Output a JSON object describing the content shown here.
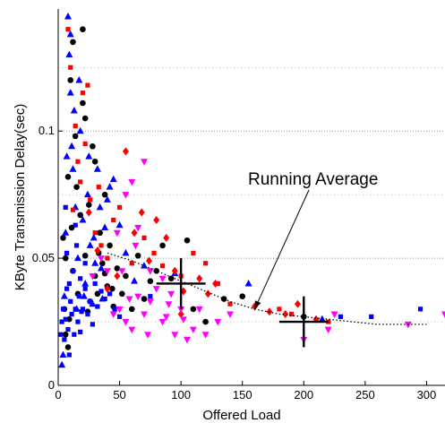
{
  "chart_data": {
    "type": "scatter",
    "title": "",
    "xlabel": "Offered Load",
    "ylabel": "KByte Transmission Delay(sec)",
    "xlim": [
      0,
      315
    ],
    "ylim": [
      0,
      0.148
    ],
    "xticks": [
      0,
      50,
      100,
      150,
      200,
      250,
      300
    ],
    "yticks": [
      0,
      0.05,
      0.1
    ],
    "ytick_labels": [
      "0",
      "0.05",
      "0.1"
    ],
    "grid": "horizontal dotted",
    "colors": {
      "black": "#000000",
      "blue": "#0000ff",
      "red": "#ff0000",
      "magenta": "#ff00ff"
    },
    "series": [
      {
        "marker": "circle",
        "color": "black",
        "points": [
          [
            5,
            0.03
          ],
          [
            6,
            0.05
          ],
          [
            8,
            0.082
          ],
          [
            10,
            0.12
          ],
          [
            12,
            0.045
          ],
          [
            14,
            0.098
          ],
          [
            16,
            0.036
          ],
          [
            18,
            0.067
          ],
          [
            20,
            0.111
          ],
          [
            22,
            0.051
          ],
          [
            24,
            0.029
          ],
          [
            25,
            0.071
          ],
          [
            28,
            0.094
          ],
          [
            30,
            0.043
          ],
          [
            32,
            0.036
          ],
          [
            34,
            0.06
          ],
          [
            36,
            0.048
          ],
          [
            38,
            0.075
          ],
          [
            40,
            0.039
          ],
          [
            42,
            0.055
          ],
          [
            45,
            0.031
          ],
          [
            48,
            0.046
          ],
          [
            52,
            0.036
          ],
          [
            55,
            0.043
          ],
          [
            60,
            0.03
          ],
          [
            65,
            0.051
          ],
          [
            70,
            0.034
          ],
          [
            75,
            0.041
          ],
          [
            80,
            0.045
          ],
          [
            85,
            0.055
          ],
          [
            92,
            0.042
          ],
          [
            105,
            0.057
          ],
          [
            110,
            0.03
          ],
          [
            120,
            0.025
          ],
          [
            135,
            0.034
          ],
          [
            150,
            0.035
          ],
          [
            200,
            0.027
          ],
          [
            8,
            0.015
          ],
          [
            12,
            0.135
          ],
          [
            20,
            0.14
          ],
          [
            6,
            0.02
          ],
          [
            15,
            0.078
          ],
          [
            30,
            0.088
          ],
          [
            9,
            0.026
          ],
          [
            22,
            0.105
          ],
          [
            4,
            0.058
          ],
          [
            11,
            0.062
          ],
          [
            26,
            0.033
          ],
          [
            33,
            0.052
          ],
          [
            38,
            0.044
          ],
          [
            44,
            0.038
          ]
        ]
      },
      {
        "marker": "triangle",
        "color": "blue",
        "points": [
          [
            3,
            0.008
          ],
          [
            4,
            0.012
          ],
          [
            5,
            0.035
          ],
          [
            6,
            0.06
          ],
          [
            7,
            0.09
          ],
          [
            8,
            0.145
          ],
          [
            9,
            0.13
          ],
          [
            10,
            0.115
          ],
          [
            12,
            0.085
          ],
          [
            14,
            0.07
          ],
          [
            15,
            0.03
          ],
          [
            16,
            0.05
          ],
          [
            18,
            0.1
          ],
          [
            20,
            0.065
          ],
          [
            22,
            0.04
          ],
          [
            24,
            0.075
          ],
          [
            26,
            0.055
          ],
          [
            28,
            0.032
          ],
          [
            30,
            0.048
          ],
          [
            34,
            0.07
          ],
          [
            36,
            0.034
          ],
          [
            38,
            0.062
          ],
          [
            40,
            0.073
          ],
          [
            45,
            0.081
          ],
          [
            50,
            0.063
          ],
          [
            55,
            0.052
          ],
          [
            62,
            0.041
          ],
          [
            70,
            0.047
          ],
          [
            95,
            0.044
          ],
          [
            155,
            0.04
          ],
          [
            215,
            0.026
          ],
          [
            10,
            0.138
          ],
          [
            25,
            0.09
          ],
          [
            32,
            0.085
          ],
          [
            42,
            0.078
          ],
          [
            11,
            0.094
          ],
          [
            17,
            0.12
          ],
          [
            13,
            0.108
          ],
          [
            21,
            0.035
          ],
          [
            29,
            0.058
          ],
          [
            35,
            0.046
          ]
        ]
      },
      {
        "marker": "square",
        "color": "blue",
        "points": [
          [
            2,
            0.02
          ],
          [
            3,
            0.025
          ],
          [
            4,
            0.03
          ],
          [
            5,
            0.018
          ],
          [
            6,
            0.026
          ],
          [
            7,
            0.038
          ],
          [
            8,
            0.022
          ],
          [
            9,
            0.04
          ],
          [
            10,
            0.033
          ],
          [
            11,
            0.028
          ],
          [
            12,
            0.045
          ],
          [
            13,
            0.02
          ],
          [
            14,
            0.03
          ],
          [
            15,
            0.055
          ],
          [
            16,
            0.025
          ],
          [
            17,
            0.035
          ],
          [
            18,
            0.042
          ],
          [
            19,
            0.029
          ],
          [
            20,
            0.03
          ],
          [
            22,
            0.038
          ],
          [
            24,
            0.028
          ],
          [
            26,
            0.033
          ],
          [
            28,
            0.024
          ],
          [
            30,
            0.04
          ],
          [
            32,
            0.031
          ],
          [
            35,
            0.037
          ],
          [
            38,
            0.034
          ],
          [
            42,
            0.036
          ],
          [
            46,
            0.03
          ],
          [
            50,
            0.027
          ],
          [
            75,
            0.035
          ],
          [
            230,
            0.027
          ],
          [
            255,
            0.027
          ],
          [
            295,
            0.03
          ],
          [
            6,
            0.07
          ],
          [
            9,
            0.012
          ],
          [
            14,
            0.063
          ],
          [
            18,
            0.021
          ],
          [
            22,
            0.048
          ],
          [
            7,
            0.052
          ]
        ]
      },
      {
        "marker": "square",
        "color": "red",
        "points": [
          [
            8,
            0.14
          ],
          [
            10,
            0.125
          ],
          [
            14,
            0.102
          ],
          [
            18,
            0.08
          ],
          [
            20,
            0.115
          ],
          [
            22,
            0.095
          ],
          [
            26,
            0.073
          ],
          [
            30,
            0.06
          ],
          [
            35,
            0.055
          ],
          [
            40,
            0.05
          ],
          [
            45,
            0.065
          ],
          [
            50,
            0.07
          ],
          [
            60,
            0.048
          ],
          [
            70,
            0.058
          ],
          [
            78,
            0.052
          ],
          [
            85,
            0.047
          ],
          [
            100,
            0.043
          ],
          [
            110,
            0.052
          ],
          [
            120,
            0.048
          ],
          [
            130,
            0.04
          ],
          [
            140,
            0.032
          ],
          [
            180,
            0.03
          ],
          [
            190,
            0.028
          ],
          [
            220,
            0.025
          ],
          [
            16,
            0.088
          ],
          [
            24,
            0.118
          ],
          [
            12,
            0.069
          ],
          [
            33,
            0.078
          ]
        ]
      },
      {
        "marker": "diamond",
        "color": "red",
        "points": [
          [
            25,
            0.068
          ],
          [
            32,
            0.053
          ],
          [
            40,
            0.038
          ],
          [
            55,
            0.092
          ],
          [
            62,
            0.06
          ],
          [
            68,
            0.068
          ],
          [
            74,
            0.049
          ],
          [
            80,
            0.065
          ],
          [
            88,
            0.058
          ],
          [
            95,
            0.045
          ],
          [
            100,
            0.028
          ],
          [
            102,
            0.037
          ],
          [
            115,
            0.042
          ],
          [
            122,
            0.036
          ],
          [
            128,
            0.04
          ],
          [
            160,
            0.031
          ],
          [
            172,
            0.029
          ],
          [
            185,
            0.028
          ],
          [
            195,
            0.032
          ],
          [
            210,
            0.026
          ],
          [
            48,
            0.043
          ]
        ]
      },
      {
        "marker": "triangle-down",
        "color": "magenta",
        "points": [
          [
            28,
            0.043
          ],
          [
            35,
            0.05
          ],
          [
            40,
            0.045
          ],
          [
            45,
            0.028
          ],
          [
            50,
            0.03
          ],
          [
            55,
            0.025
          ],
          [
            60,
            0.022
          ],
          [
            65,
            0.035
          ],
          [
            70,
            0.028
          ],
          [
            75,
            0.045
          ],
          [
            80,
            0.038
          ],
          [
            85,
            0.025
          ],
          [
            90,
            0.032
          ],
          [
            95,
            0.02
          ],
          [
            100,
            0.03
          ],
          [
            105,
            0.018
          ],
          [
            110,
            0.022
          ],
          [
            115,
            0.03
          ],
          [
            120,
            0.02
          ],
          [
            130,
            0.025
          ],
          [
            140,
            0.028
          ],
          [
            55,
            0.075
          ],
          [
            60,
            0.08
          ],
          [
            65,
            0.062
          ],
          [
            70,
            0.088
          ],
          [
            48,
            0.06
          ],
          [
            52,
            0.045
          ],
          [
            75,
            0.033
          ],
          [
            85,
            0.042
          ],
          [
            92,
            0.036
          ],
          [
            200,
            0.018
          ],
          [
            220,
            0.022
          ],
          [
            225,
            0.028
          ],
          [
            285,
            0.024
          ],
          [
            315,
            0.028
          ],
          [
            63,
            0.055
          ],
          [
            58,
            0.034
          ],
          [
            73,
            0.02
          ],
          [
            88,
            0.027
          ],
          [
            102,
            0.026
          ]
        ]
      }
    ],
    "running_average": {
      "x": [
        40,
        60,
        80,
        100,
        120,
        140,
        160,
        180,
        200,
        220,
        240,
        260,
        280,
        300
      ],
      "y": [
        0.052,
        0.049,
        0.045,
        0.041,
        0.037,
        0.033,
        0.03,
        0.028,
        0.027,
        0.026,
        0.025,
        0.024,
        0.024,
        0.024
      ]
    },
    "highlight_markers": [
      {
        "x": 100,
        "y": 0.04,
        "x_err": 20,
        "y_err": 0.01
      },
      {
        "x": 200,
        "y": 0.025,
        "x_err": 20,
        "y_err": 0.01
      }
    ],
    "annotations": [
      {
        "text": "Running Average",
        "arrow_to": [
          160,
          0.03
        ]
      }
    ]
  }
}
